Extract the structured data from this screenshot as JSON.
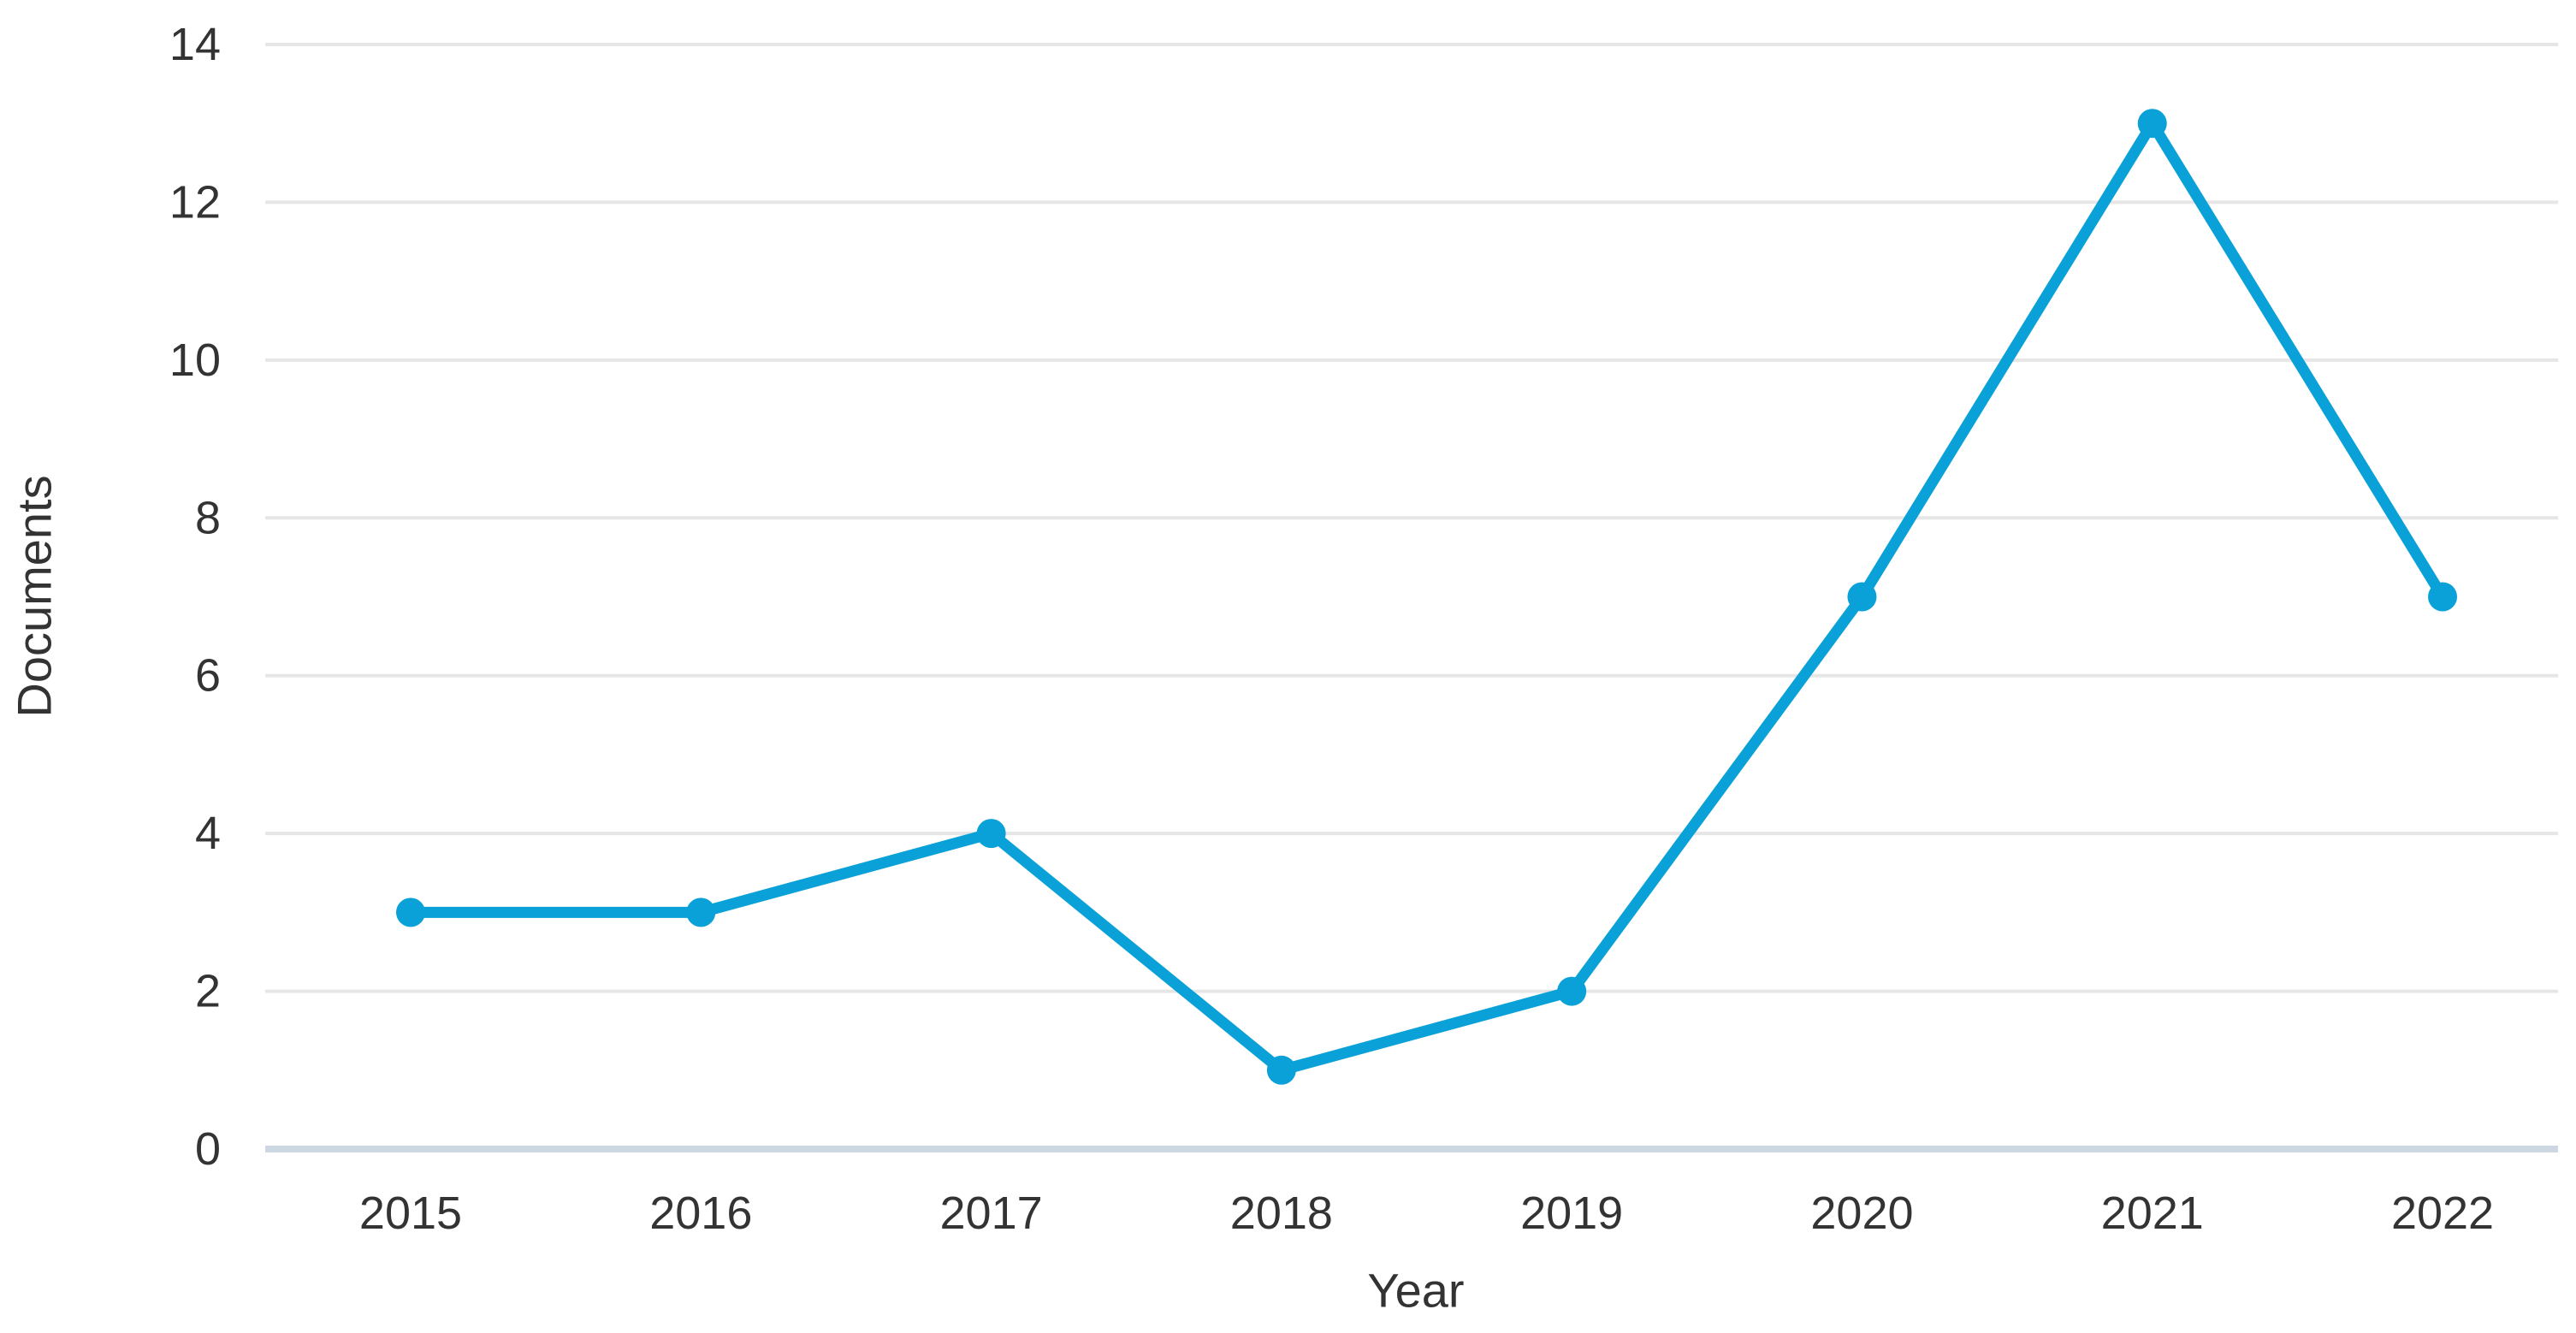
{
  "chart_data": {
    "type": "line",
    "title": "",
    "xlabel": "Year",
    "ylabel": "Documents",
    "categories": [
      "2015",
      "2016",
      "2017",
      "2018",
      "2019",
      "2020",
      "2021",
      "2022"
    ],
    "series": [
      {
        "name": "Documents",
        "values": [
          3,
          3,
          4,
          1,
          2,
          7,
          13,
          7
        ]
      }
    ],
    "ylim": [
      0,
      14
    ],
    "ytick_step": 2,
    "yticks": [
      0,
      2,
      4,
      6,
      8,
      10,
      12,
      14
    ],
    "grid": "horizontal",
    "legend": "none",
    "colors": {
      "line": "#09a1d7",
      "marker": "#09a1d7",
      "gridline": "#e6e6e6",
      "axis_line": "#cdd7e1",
      "text": "#333333",
      "background": "#ffffff"
    }
  }
}
